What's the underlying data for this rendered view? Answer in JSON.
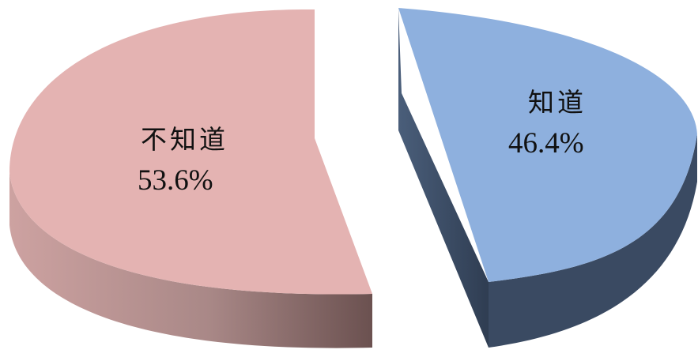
{
  "chart_data": {
    "type": "pie",
    "style": "3d-exploded",
    "slices": [
      {
        "label": "知道",
        "value": 46.4,
        "value_label": "46.4%",
        "color": "#8EB0DE",
        "side_color": "#3A4A62"
      },
      {
        "label": "不知道",
        "value": 53.6,
        "value_label": "53.6%",
        "color": "#E4B3B2",
        "side_color": "#8F6E6D"
      }
    ]
  }
}
